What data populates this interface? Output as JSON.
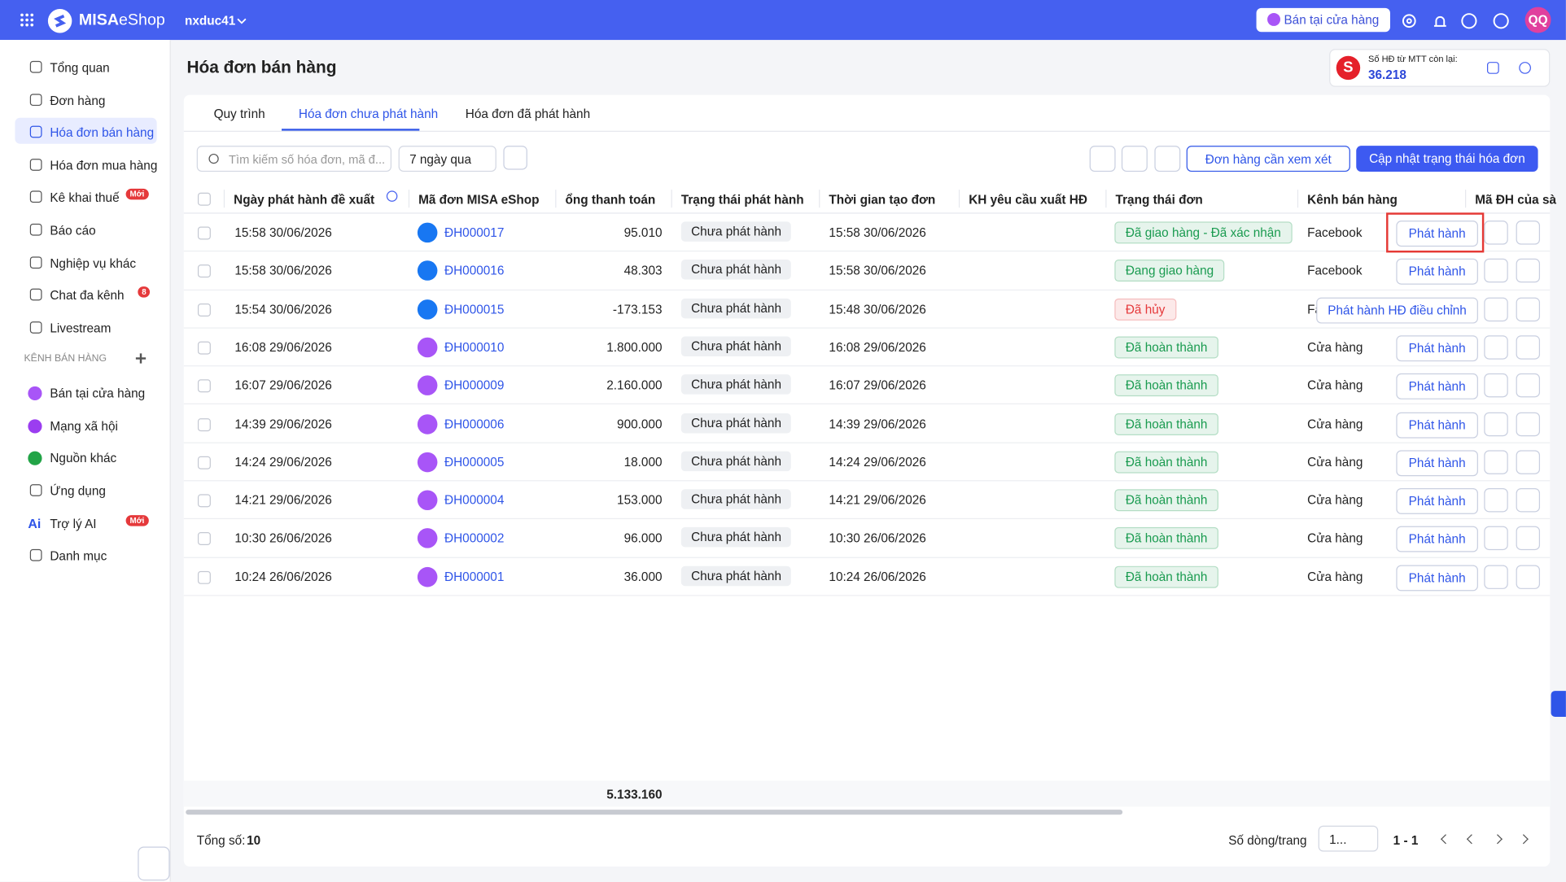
{
  "header": {
    "logo": "MISA",
    "logo2": "eShop",
    "shop": "nxduc41",
    "store_button": "Bán tại cửa hàng",
    "avatar": "QQ"
  },
  "sidebar": {
    "items": [
      {
        "label": "Tổng quan"
      },
      {
        "label": "Đơn hàng"
      },
      {
        "label": "Hóa đơn bán hàng"
      },
      {
        "label": "Hóa đơn mua hàng"
      },
      {
        "label": "Kê khai thuế",
        "badge": "Mới"
      },
      {
        "label": "Báo cáo"
      },
      {
        "label": "Nghiệp vụ khác"
      },
      {
        "label": "Chat đa kênh",
        "badge": "8"
      },
      {
        "label": "Livestream"
      }
    ],
    "active": 2,
    "section": "KÊNH BÁN HÀNG",
    "channels": [
      {
        "label": "Bán tại cửa hàng",
        "color": "#a855f7"
      },
      {
        "label": "Mạng xã hội",
        "color": "#9b3df0"
      },
      {
        "label": "Nguồn khác",
        "color": "#22a447"
      }
    ],
    "bottom": [
      {
        "label": "Ứng dụng"
      },
      {
        "label": "Trợ lý AI",
        "icon": "Ai",
        "badge": "Mới"
      },
      {
        "label": "Danh mục"
      }
    ]
  },
  "page": {
    "title": "Hóa đơn bán hàng",
    "quota_icon": "S",
    "quota_label": "Số HĐ từ MTT còn lại:",
    "quota_value": "36.218"
  },
  "tabs": [
    "Quy trình",
    "Hóa đơn chưa phát hành",
    "Hóa đơn đã phát hành"
  ],
  "active_tab": 1,
  "toolbar": {
    "search_placeholder": "Tìm kiếm số hóa đơn, mã đ...",
    "period": "7 ngày qua",
    "review_button": "Đơn hàng cần xem xét",
    "update_button": "Cập nhật trạng thái hóa đơn"
  },
  "table": {
    "columns": [
      "Ngày phát hành đề xuất",
      "Mã đơn MISA eShop",
      "ổng thanh toán",
      "Trạng thái phát hành",
      "Thời gian tạo đơn",
      "KH yêu cầu xuất HĐ",
      "Trạng thái đơn",
      "Kênh bán hàng",
      "Mã ĐH của sà"
    ],
    "rows": [
      {
        "date": "15:58 30/06/2026",
        "code": "ĐH000017",
        "total": "95.010",
        "issue_status": "Chưa phát hành",
        "created": "15:58 30/06/2026",
        "status": "Đã giao hàng - Đã xác nhận",
        "status_color": "#1a9b50",
        "channel": "Facebook",
        "action": "Phát hành"
      },
      {
        "date": "15:58 30/06/2026",
        "code": "ĐH000016",
        "total": "48.303",
        "issue_status": "Chưa phát hành",
        "created": "15:58 30/06/2026",
        "status": "Đang giao hàng",
        "status_color": "#1a9b50",
        "channel": "Facebook",
        "action": "Phát hành"
      },
      {
        "date": "15:54 30/06/2026",
        "code": "ĐH000015",
        "total": "-173.153",
        "issue_status": "Chưa phát hành",
        "created": "15:48 30/06/2026",
        "status": "Đã hủy",
        "status_color": "#e5393b",
        "channel": "Facebook",
        "action": "Phát hành HĐ điều chỉnh"
      },
      {
        "date": "16:08 29/06/2026",
        "code": "ĐH000010",
        "total": "1.800.000",
        "issue_status": "Chưa phát hành",
        "created": "16:08 29/06/2026",
        "status": "Đã hoàn thành",
        "status_color": "#1a9b50",
        "channel": "Cửa hàng",
        "action": "Phát hành"
      },
      {
        "date": "16:07 29/06/2026",
        "code": "ĐH000009",
        "total": "2.160.000",
        "issue_status": "Chưa phát hành",
        "created": "16:07 29/06/2026",
        "status": "Đã hoàn thành",
        "status_color": "#1a9b50",
        "channel": "Cửa hàng",
        "action": "Phát hành"
      },
      {
        "date": "14:39 29/06/2026",
        "code": "ĐH000006",
        "total": "900.000",
        "issue_status": "Chưa phát hành",
        "created": "14:39 29/06/2026",
        "status": "Đã hoàn thành",
        "status_color": "#1a9b50",
        "channel": "Cửa hàng",
        "action": "Phát hành"
      },
      {
        "date": "14:24 29/06/2026",
        "code": "ĐH000005",
        "total": "18.000",
        "issue_status": "Chưa phát hành",
        "created": "14:24 29/06/2026",
        "status": "Đã hoàn thành",
        "status_color": "#1a9b50",
        "channel": "Cửa hàng",
        "action": "Phát hành"
      },
      {
        "date": "14:21 29/06/2026",
        "code": "ĐH000004",
        "total": "153.000",
        "issue_status": "Chưa phát hành",
        "created": "14:21 29/06/2026",
        "status": "Đã hoàn thành",
        "status_color": "#1a9b50",
        "channel": "Cửa hàng",
        "action": "Phát hành"
      },
      {
        "date": "10:30 26/06/2026",
        "code": "ĐH000002",
        "total": "96.000",
        "issue_status": "Chưa phát hành",
        "created": "10:30 26/06/2026",
        "status": "Đã hoàn thành",
        "status_color": "#1a9b50",
        "channel": "Cửa hàng",
        "action": "Phát hành"
      },
      {
        "date": "10:24 26/06/2026",
        "code": "ĐH000001",
        "total": "36.000",
        "issue_status": "Chưa phát hành",
        "created": "10:24 26/06/2026",
        "status": "Đã hoàn thành",
        "status_color": "#1a9b50",
        "channel": "Cửa hàng",
        "action": "Phát hành"
      }
    ],
    "sum": "5.133.160"
  },
  "footer": {
    "count_label": "Tổng số:",
    "count": "10",
    "page_size_label": "Số dòng/trang",
    "page_size": "1...",
    "range": "1 - 1"
  }
}
